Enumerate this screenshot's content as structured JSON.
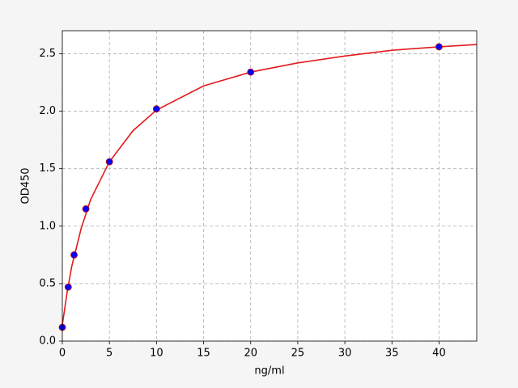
{
  "chart_data": {
    "type": "scatter",
    "x_label": "ng/ml",
    "y_label": "OD450",
    "x": [
      0,
      0.625,
      1.25,
      2.5,
      5,
      10,
      20,
      40
    ],
    "values": [
      0.12,
      0.47,
      0.75,
      1.15,
      1.56,
      2.02,
      2.34,
      2.56
    ],
    "color": "#0000ff",
    "edge_color": "#cc0000",
    "curve": {
      "color": "#e31a1c",
      "x": [
        0,
        0.5,
        1,
        2,
        3,
        5,
        7.5,
        10,
        15,
        20,
        25,
        30,
        35,
        40,
        44
      ],
      "values": [
        0.14,
        0.42,
        0.65,
        0.98,
        1.23,
        1.56,
        1.83,
        2.01,
        2.22,
        2.34,
        2.42,
        2.48,
        2.53,
        2.56,
        2.58
      ]
    },
    "xlim": [
      0,
      44
    ],
    "ylim": [
      0,
      2.7
    ],
    "xticks": [
      0,
      5,
      10,
      15,
      20,
      25,
      30,
      35,
      40
    ],
    "yticks": [
      {
        "value": 0,
        "label": "0.0"
      },
      0.5,
      {
        "value": 1,
        "label": "1.0"
      },
      1.5,
      {
        "value": 2,
        "label": "2.0"
      },
      2.5
    ],
    "grid": true
  }
}
